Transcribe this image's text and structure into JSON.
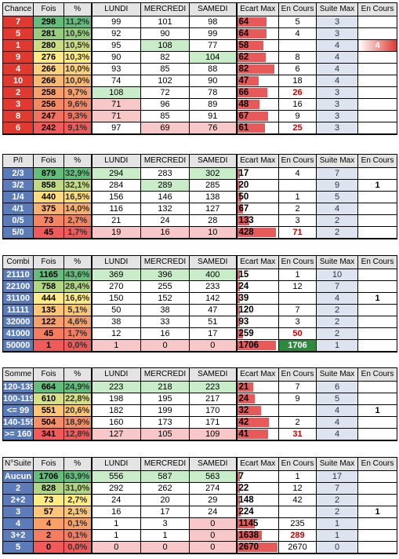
{
  "colors": {
    "label_red": "#e0392f",
    "label_blue": "#5b7cb8",
    "ecart_bar": "#e85a5a",
    "green_cell": "#c9ecc9",
    "pink_cell": "#f8c8c8",
    "enc_green": "#2e8b3e",
    "header_bg": "#e4e4e4",
    "suite_bg": "#dde4ef"
  },
  "headers": {
    "fois": "Fois",
    "pct": "%",
    "lundi": "LUNDI",
    "mercredi": "MERCREDI",
    "samedi": "SAMEDI",
    "ecart": "Ecart Max",
    "encours": "En Cours",
    "suite": "Suite Max",
    "encours2": "En Cours"
  },
  "tables": [
    {
      "title": "Chance",
      "label_color": "red",
      "ecart_max": 90,
      "rows": [
        {
          "label": "7",
          "fois": "298",
          "pct": "11,2%",
          "lundi": "99",
          "mercredi": "101",
          "samedi": "98",
          "ecart": "64",
          "encours": "5",
          "enc_red": false,
          "suite": "3",
          "encours2": "",
          "hl": {
            "l": "",
            "m": "",
            "s": ""
          }
        },
        {
          "label": "5",
          "fois": "281",
          "pct": "10,5%",
          "lundi": "92",
          "mercredi": "90",
          "samedi": "99",
          "ecart": "64",
          "encours": "4",
          "enc_red": false,
          "suite": "3",
          "encours2": "",
          "hl": {
            "l": "",
            "m": "",
            "s": ""
          }
        },
        {
          "label": "1",
          "fois": "280",
          "pct": "10,5%",
          "lundi": "95",
          "mercredi": "108",
          "samedi": "77",
          "ecart": "58",
          "encours": "",
          "enc_red": false,
          "suite": "4",
          "encours2": "4",
          "hl": {
            "l": "",
            "m": "g",
            "s": ""
          }
        },
        {
          "label": "9",
          "fois": "276",
          "pct": "10,3%",
          "lundi": "90",
          "mercredi": "82",
          "samedi": "104",
          "ecart": "62",
          "encours": "8",
          "enc_red": false,
          "suite": "4",
          "encours2": "",
          "hl": {
            "l": "",
            "m": "",
            "s": "g"
          }
        },
        {
          "label": "4",
          "fois": "266",
          "pct": "10,0%",
          "lundi": "93",
          "mercredi": "85",
          "samedi": "88",
          "ecart": "82",
          "encours": "6",
          "enc_red": false,
          "suite": "4",
          "encours2": "",
          "hl": {
            "l": "",
            "m": "",
            "s": ""
          }
        },
        {
          "label": "10",
          "fois": "266",
          "pct": "10,0%",
          "lundi": "74",
          "mercredi": "102",
          "samedi": "90",
          "ecart": "47",
          "encours": "18",
          "enc_red": false,
          "suite": "4",
          "encours2": "",
          "hl": {
            "l": "",
            "m": "",
            "s": ""
          }
        },
        {
          "label": "2",
          "fois": "258",
          "pct": "9,7%",
          "lundi": "108",
          "mercredi": "72",
          "samedi": "78",
          "ecart": "66",
          "encours": "26",
          "enc_red": true,
          "suite": "3",
          "encours2": "",
          "hl": {
            "l": "g",
            "m": "",
            "s": ""
          }
        },
        {
          "label": "3",
          "fois": "256",
          "pct": "9,6%",
          "lundi": "71",
          "mercredi": "96",
          "samedi": "89",
          "ecart": "48",
          "encours": "16",
          "enc_red": false,
          "suite": "3",
          "encours2": "",
          "hl": {
            "l": "p",
            "m": "",
            "s": ""
          }
        },
        {
          "label": "8",
          "fois": "247",
          "pct": "9,3%",
          "lundi": "71",
          "mercredi": "85",
          "samedi": "91",
          "ecart": "67",
          "encours": "9",
          "enc_red": false,
          "suite": "3",
          "encours2": "",
          "hl": {
            "l": "p",
            "m": "",
            "s": ""
          }
        },
        {
          "label": "6",
          "fois": "242",
          "pct": "9,1%",
          "lundi": "97",
          "mercredi": "69",
          "samedi": "76",
          "ecart": "61",
          "encours": "25",
          "enc_red": true,
          "suite": "3",
          "encours2": "",
          "hl": {
            "l": "",
            "m": "p",
            "s": "p"
          }
        }
      ]
    },
    {
      "title": "P/I",
      "label_color": "blue",
      "ecart_max": 450,
      "rows": [
        {
          "label": "2/3",
          "fois": "879",
          "pct": "32,9%",
          "lundi": "294",
          "mercredi": "283",
          "samedi": "302",
          "ecart": "17",
          "encours": "4",
          "enc_red": false,
          "suite": "7",
          "encours2": "",
          "hl": {
            "l": "g",
            "m": "",
            "s": "g"
          }
        },
        {
          "label": "3/2",
          "fois": "858",
          "pct": "32,1%",
          "lundi": "284",
          "mercredi": "289",
          "samedi": "285",
          "ecart": "20",
          "encours": "",
          "enc_red": false,
          "suite": "9",
          "encours2": "1",
          "hl": {
            "l": "",
            "m": "g",
            "s": ""
          }
        },
        {
          "label": "1/4",
          "fois": "440",
          "pct": "16,5%",
          "lundi": "156",
          "mercredi": "146",
          "samedi": "138",
          "ecart": "50",
          "encours": "1",
          "enc_red": false,
          "suite": "5",
          "encours2": "",
          "hl": {
            "l": "",
            "m": "",
            "s": ""
          }
        },
        {
          "label": "4/1",
          "fois": "375",
          "pct": "14,0%",
          "lundi": "116",
          "mercredi": "132",
          "samedi": "127",
          "ecart": "67",
          "encours": "2",
          "enc_red": false,
          "suite": "4",
          "encours2": "",
          "hl": {
            "l": "",
            "m": "",
            "s": ""
          }
        },
        {
          "label": "0/5",
          "fois": "73",
          "pct": "2,7%",
          "lundi": "21",
          "mercredi": "24",
          "samedi": "28",
          "ecart": "133",
          "encours": "3",
          "enc_red": false,
          "suite": "2",
          "encours2": "",
          "hl": {
            "l": "",
            "m": "",
            "s": ""
          }
        },
        {
          "label": "5/0",
          "fois": "45",
          "pct": "1,7%",
          "lundi": "19",
          "mercredi": "16",
          "samedi": "10",
          "ecart": "428",
          "encours": "71",
          "enc_red": true,
          "suite": "2",
          "encours2": "",
          "hl": {
            "l": "p",
            "m": "p",
            "s": "p"
          }
        }
      ]
    },
    {
      "title": "Combi",
      "label_color": "blue",
      "ecart_max": 1800,
      "rows": [
        {
          "label": "21110",
          "fois": "1165",
          "pct": "43,6%",
          "lundi": "369",
          "mercredi": "396",
          "samedi": "400",
          "ecart": "15",
          "encours": "1",
          "enc_red": false,
          "suite": "10",
          "encours2": "",
          "hl": {
            "l": "g",
            "m": "g",
            "s": "g"
          }
        },
        {
          "label": "22100",
          "fois": "758",
          "pct": "28,4%",
          "lundi": "270",
          "mercredi": "255",
          "samedi": "233",
          "ecart": "24",
          "encours": "12",
          "enc_red": false,
          "suite": "7",
          "encours2": "",
          "hl": {
            "l": "",
            "m": "",
            "s": ""
          }
        },
        {
          "label": "31100",
          "fois": "444",
          "pct": "16,6%",
          "lundi": "150",
          "mercredi": "152",
          "samedi": "142",
          "ecart": "39",
          "encours": "",
          "enc_red": false,
          "suite": "4",
          "encours2": "1",
          "hl": {
            "l": "",
            "m": "",
            "s": ""
          }
        },
        {
          "label": "11111",
          "fois": "135",
          "pct": "5,1%",
          "lundi": "50",
          "mercredi": "38",
          "samedi": "47",
          "ecart": "120",
          "encours": "7",
          "enc_red": false,
          "suite": "2",
          "encours2": "",
          "hl": {
            "l": "",
            "m": "",
            "s": ""
          }
        },
        {
          "label": "32000",
          "fois": "122",
          "pct": "4,6%",
          "lundi": "38",
          "mercredi": "33",
          "samedi": "51",
          "ecart": "93",
          "encours": "3",
          "enc_red": false,
          "suite": "2",
          "encours2": "",
          "hl": {
            "l": "",
            "m": "",
            "s": ""
          }
        },
        {
          "label": "41000",
          "fois": "45",
          "pct": "1,7%",
          "lundi": "12",
          "mercredi": "16",
          "samedi": "17",
          "ecart": "259",
          "encours": "50",
          "enc_red": true,
          "suite": "2",
          "encours2": "",
          "hl": {
            "l": "",
            "m": "",
            "s": ""
          }
        },
        {
          "label": "50000",
          "fois": "1",
          "pct": "0,0%",
          "lundi": "1",
          "mercredi": "0",
          "samedi": "0",
          "ecart": "1706",
          "encours": "1706",
          "enc_red": false,
          "enc_green": true,
          "suite": "1",
          "encours2": "",
          "hl": {
            "l": "p",
            "m": "p",
            "s": "p"
          }
        }
      ]
    },
    {
      "title": "Somme",
      "label_color": "blue",
      "ecart_max": 55,
      "rows": [
        {
          "label": "120-139",
          "fois": "664",
          "pct": "24,9%",
          "lundi": "223",
          "mercredi": "218",
          "samedi": "223",
          "ecart": "21",
          "encours": "7",
          "enc_red": false,
          "suite": "6",
          "encours2": "",
          "hl": {
            "l": "g",
            "m": "g",
            "s": "g"
          }
        },
        {
          "label": "100-119",
          "fois": "610",
          "pct": "22,8%",
          "lundi": "198",
          "mercredi": "195",
          "samedi": "217",
          "ecart": "24",
          "encours": "9",
          "enc_red": false,
          "suite": "5",
          "encours2": "",
          "hl": {
            "l": "",
            "m": "",
            "s": ""
          }
        },
        {
          "label": "<= 99",
          "fois": "551",
          "pct": "20,6%",
          "lundi": "182",
          "mercredi": "199",
          "samedi": "170",
          "ecart": "32",
          "encours": "",
          "enc_red": false,
          "suite": "4",
          "encours2": "1",
          "hl": {
            "l": "",
            "m": "",
            "s": ""
          }
        },
        {
          "label": "140-159",
          "fois": "504",
          "pct": "18,9%",
          "lundi": "160",
          "mercredi": "173",
          "samedi": "171",
          "ecart": "42",
          "encours": "2",
          "enc_red": false,
          "suite": "4",
          "encours2": "",
          "hl": {
            "l": "",
            "m": "",
            "s": ""
          }
        },
        {
          "label": ">= 160",
          "fois": "341",
          "pct": "12,8%",
          "lundi": "127",
          "mercredi": "105",
          "samedi": "109",
          "ecart": "41",
          "encours": "31",
          "enc_red": true,
          "suite": "4",
          "encours2": "",
          "hl": {
            "l": "p",
            "m": "p",
            "s": "p"
          }
        }
      ]
    },
    {
      "title": "N°Suite",
      "label_color": "blue",
      "ecart_max": 2700,
      "rows": [
        {
          "label": "Aucun",
          "fois": "1706",
          "pct": "63,9%",
          "lundi": "556",
          "mercredi": "587",
          "samedi": "563",
          "ecart": "7",
          "encours": "1",
          "enc_red": false,
          "suite": "17",
          "encours2": "",
          "hl": {
            "l": "g",
            "m": "g",
            "s": "g"
          }
        },
        {
          "label": "2",
          "fois": "828",
          "pct": "31,0%",
          "lundi": "292",
          "mercredi": "262",
          "samedi": "274",
          "ecart": "22",
          "encours": "12",
          "enc_red": false,
          "suite": "7",
          "encours2": "",
          "hl": {
            "l": "",
            "m": "",
            "s": ""
          }
        },
        {
          "label": "2+2",
          "fois": "73",
          "pct": "2,7%",
          "lundi": "24",
          "mercredi": "20",
          "samedi": "29",
          "ecart": "148",
          "encours": "42",
          "enc_red": false,
          "suite": "2",
          "encours2": "",
          "hl": {
            "l": "",
            "m": "",
            "s": ""
          }
        },
        {
          "label": "3",
          "fois": "57",
          "pct": "2,1%",
          "lundi": "16",
          "mercredi": "17",
          "samedi": "24",
          "ecart": "224",
          "encours": "",
          "enc_red": false,
          "suite": "2",
          "encours2": "1",
          "hl": {
            "l": "",
            "m": "",
            "s": ""
          }
        },
        {
          "label": "4",
          "fois": "4",
          "pct": "0,1%",
          "lundi": "1",
          "mercredi": "3",
          "samedi": "0",
          "ecart": "1145",
          "encours": "235",
          "enc_red": false,
          "suite": "1",
          "encours2": "",
          "hl": {
            "l": "",
            "m": "",
            "s": "p"
          }
        },
        {
          "label": "3+2",
          "fois": "2",
          "pct": "0,1%",
          "lundi": "1",
          "mercredi": "1",
          "samedi": "0",
          "ecart": "1638",
          "encours": "289",
          "enc_red": true,
          "suite": "1",
          "encours2": "",
          "hl": {
            "l": "",
            "m": "",
            "s": "p"
          }
        },
        {
          "label": "5",
          "fois": "0",
          "pct": "0,0%",
          "lundi": "0",
          "mercredi": "0",
          "samedi": "0",
          "ecart": "2670",
          "encours": "2670",
          "enc_red": false,
          "suite": "0",
          "encours2": "",
          "hl": {
            "l": "p",
            "m": "p",
            "s": "p"
          }
        }
      ]
    }
  ]
}
